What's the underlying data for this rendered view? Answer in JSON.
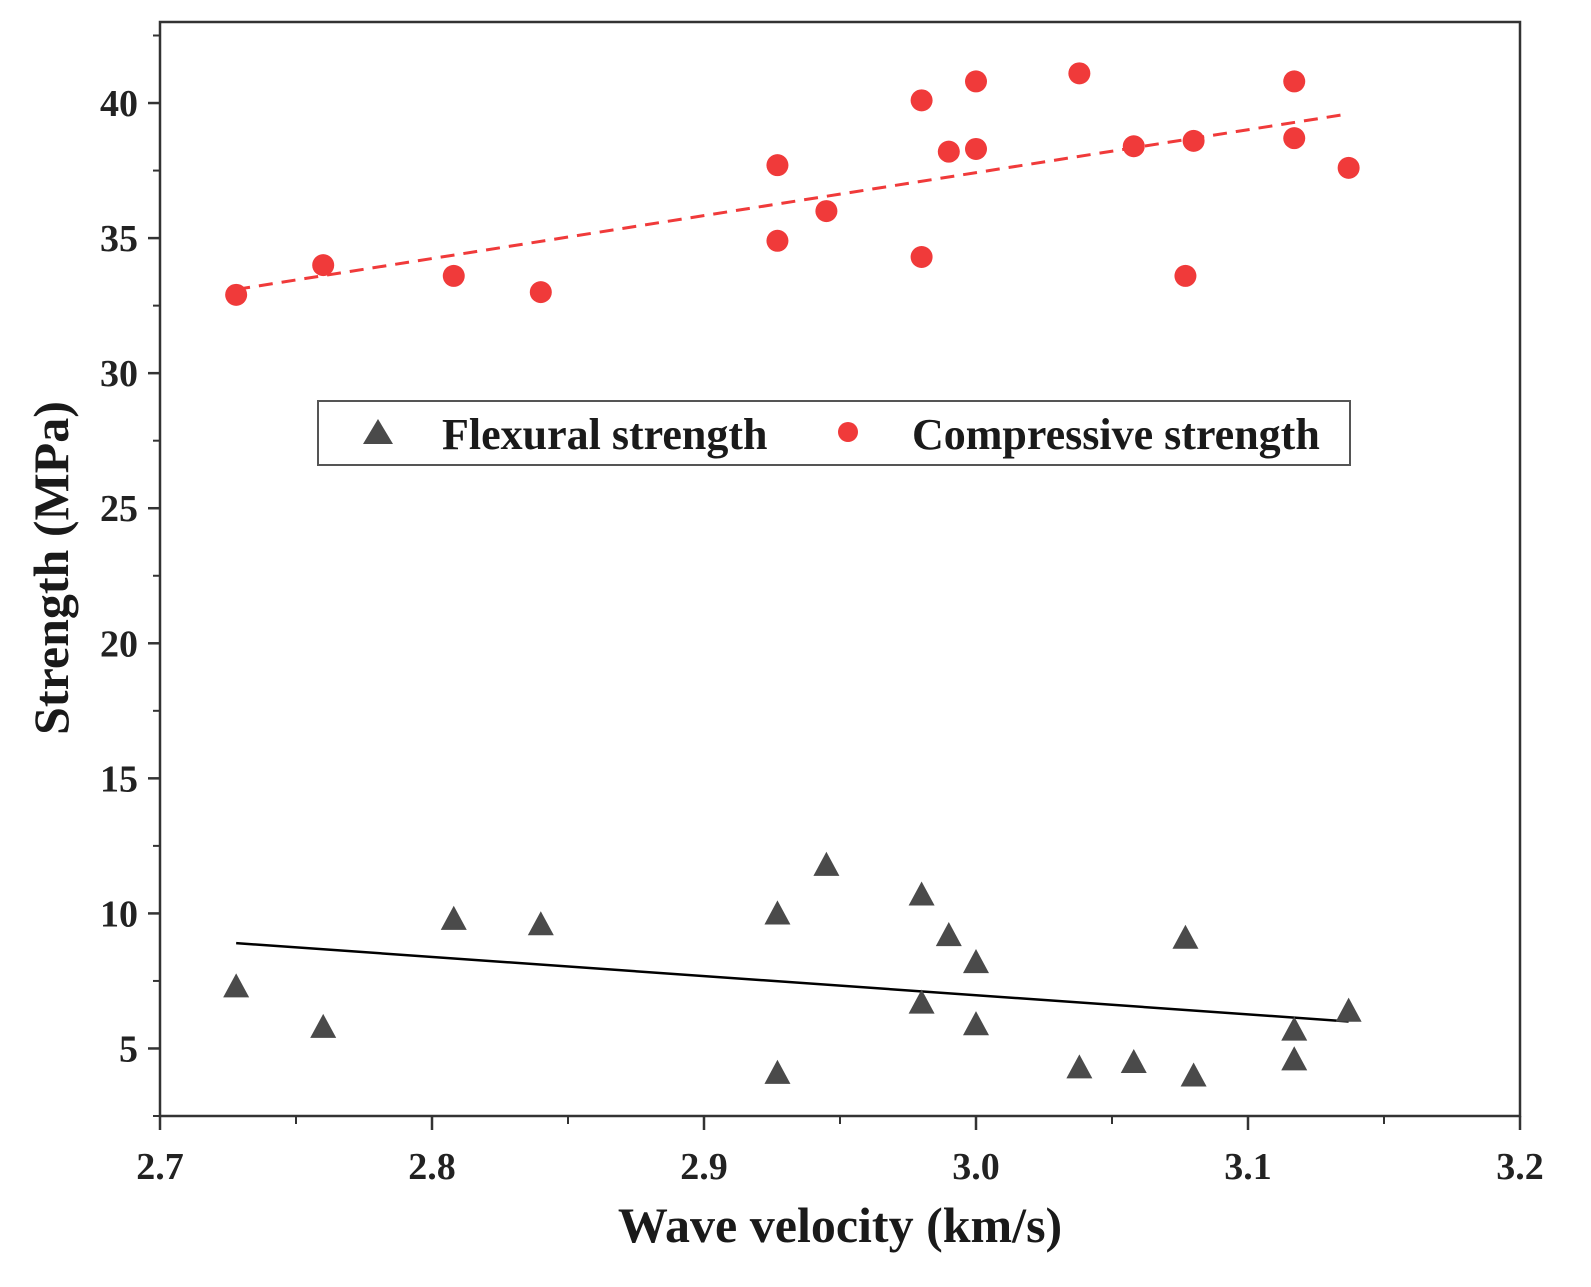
{
  "chart_data": {
    "type": "scatter",
    "xlabel": "Wave velocity (km/s)",
    "ylabel": "Strength (MPa)",
    "xlim": [
      2.7,
      3.2
    ],
    "ylim": [
      2.5,
      43
    ],
    "x_ticks": [
      "2.7",
      "2.8",
      "2.9",
      "3.0",
      "3.1",
      "3.2"
    ],
    "y_ticks": [
      "5",
      "10",
      "15",
      "20",
      "25",
      "30",
      "35",
      "40"
    ],
    "legend_position": "center",
    "grid": false,
    "series": [
      {
        "name": "Flexural strength",
        "marker": "triangle",
        "color": "#4a4a4a",
        "points": [
          [
            2.728,
            7.3
          ],
          [
            2.76,
            5.8
          ],
          [
            2.808,
            9.8
          ],
          [
            2.84,
            9.6
          ],
          [
            2.927,
            10.0
          ],
          [
            2.927,
            4.1
          ],
          [
            2.945,
            11.8
          ],
          [
            2.98,
            10.7
          ],
          [
            2.98,
            6.7
          ],
          [
            2.99,
            9.2
          ],
          [
            3.0,
            8.2
          ],
          [
            3.0,
            5.9
          ],
          [
            3.038,
            4.3
          ],
          [
            3.058,
            4.5
          ],
          [
            3.077,
            9.1
          ],
          [
            3.08,
            4.0
          ],
          [
            3.117,
            5.7
          ],
          [
            3.117,
            4.6
          ],
          [
            3.137,
            6.4
          ]
        ],
        "fit": {
          "style": "solid",
          "color": "#000000",
          "from": [
            2.728,
            8.9
          ],
          "to": [
            3.137,
            6.0
          ]
        }
      },
      {
        "name": "Compressive strength",
        "marker": "circle",
        "color": "#f03a3a",
        "points": [
          [
            2.728,
            32.9
          ],
          [
            2.76,
            34.0
          ],
          [
            2.808,
            33.6
          ],
          [
            2.84,
            33.0
          ],
          [
            2.927,
            37.7
          ],
          [
            2.927,
            34.9
          ],
          [
            2.945,
            36.0
          ],
          [
            2.98,
            40.1
          ],
          [
            2.98,
            34.3
          ],
          [
            2.99,
            38.2
          ],
          [
            3.0,
            40.8
          ],
          [
            3.0,
            38.3
          ],
          [
            3.038,
            41.1
          ],
          [
            3.058,
            38.4
          ],
          [
            3.077,
            33.6
          ],
          [
            3.08,
            38.6
          ],
          [
            3.117,
            40.8
          ],
          [
            3.117,
            38.7
          ],
          [
            3.137,
            37.6
          ]
        ],
        "fit": {
          "style": "dashed",
          "color": "#f03a3a",
          "from": [
            2.728,
            33.1
          ],
          "to": [
            3.137,
            39.6
          ]
        }
      }
    ]
  }
}
